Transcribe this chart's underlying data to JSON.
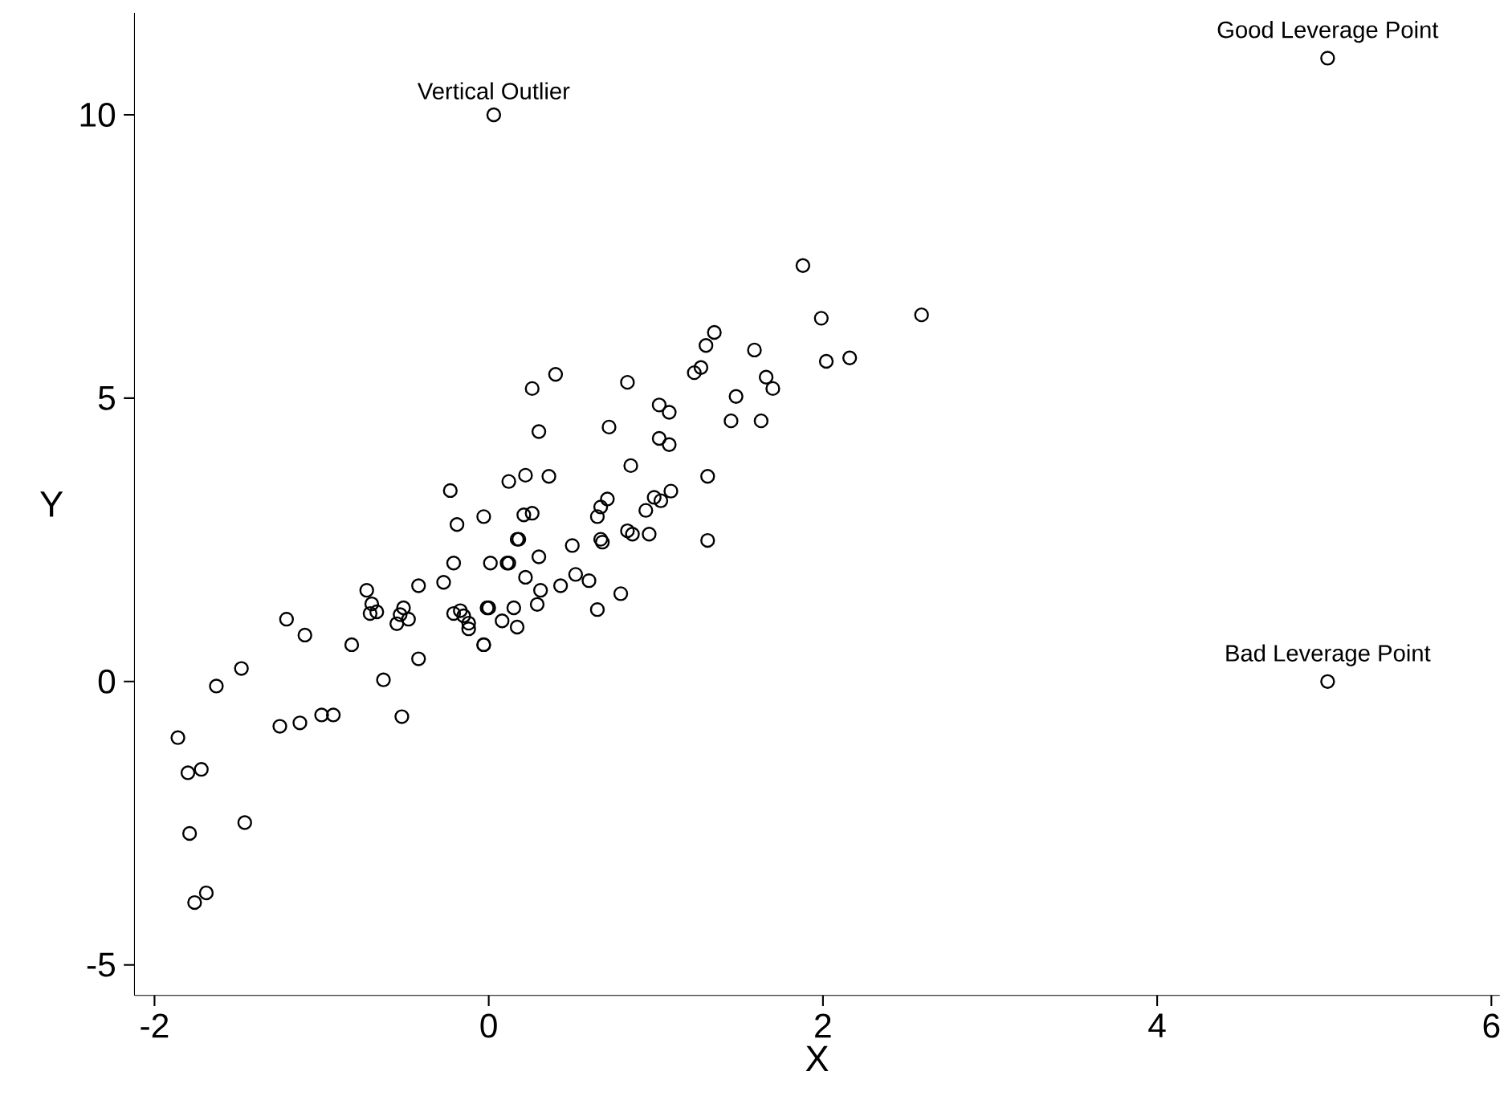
{
  "chart_data": {
    "type": "scatter",
    "xlabel": "X",
    "ylabel": "Y",
    "xlim": [
      -2.12,
      6.05
    ],
    "ylim": [
      -5.54,
      11.8
    ],
    "xticks": [
      -2,
      0,
      2,
      4,
      6
    ],
    "yticks": [
      -5,
      0,
      5,
      10
    ],
    "grid": false,
    "marker": "circle",
    "series": [
      {
        "color": "#000000",
        "x": [
          -1.86,
          -1.8,
          -1.72,
          -1.79,
          -1.46,
          -1.76,
          -1.69,
          -1.63,
          -1.48,
          -1.25,
          -1.13,
          -1.0,
          -0.93,
          -1.21,
          -1.1,
          -0.82,
          -0.63,
          -0.52,
          -0.42,
          -0.73,
          -0.7,
          -0.71,
          -0.67,
          -0.51,
          -0.53,
          -0.48,
          -0.55,
          -0.42,
          -0.27,
          -0.21,
          -0.17,
          -0.12,
          -0.03,
          0.0,
          -0.23,
          -0.19,
          -0.03,
          -0.21,
          0.01,
          0.11,
          0.17,
          0.21,
          1.88,
          1.99,
          2.59,
          2.02,
          2.16,
          1.59,
          1.35,
          1.3,
          1.27,
          1.23,
          1.66,
          1.7,
          1.48,
          1.45,
          1.63,
          0.83,
          1.02,
          1.08,
          1.02,
          1.08,
          0.72,
          0.4,
          0.26,
          0.3,
          0.22,
          0.12,
          0.36,
          0.85,
          1.31,
          1.31,
          1.09,
          1.03,
          0.99,
          0.94,
          0.71,
          0.67,
          0.65,
          0.96,
          0.83,
          0.86,
          0.67,
          0.68,
          0.26,
          0.18,
          0.5,
          0.3,
          0.12,
          0.22,
          0.43,
          0.52,
          0.6,
          0.79,
          0.65,
          0.31,
          0.29,
          0.15,
          -0.01,
          0.08,
          0.17,
          -0.03,
          -0.12,
          -0.15,
          0.03,
          5.02,
          5.02
        ],
        "values": [
          -0.99,
          -1.61,
          -1.55,
          -2.68,
          -2.49,
          -3.9,
          -3.73,
          -0.08,
          0.23,
          -0.79,
          -0.73,
          -0.59,
          -0.59,
          1.1,
          0.82,
          0.65,
          0.03,
          -0.62,
          0.4,
          1.61,
          1.37,
          1.2,
          1.23,
          1.3,
          1.18,
          1.1,
          1.02,
          1.69,
          1.75,
          1.2,
          1.25,
          1.03,
          0.65,
          1.3,
          3.37,
          2.77,
          2.91,
          2.09,
          2.09,
          2.09,
          2.51,
          2.94,
          7.34,
          6.41,
          6.47,
          5.65,
          5.71,
          5.85,
          6.16,
          5.93,
          5.54,
          5.45,
          5.37,
          5.17,
          5.03,
          4.6,
          4.6,
          5.28,
          4.88,
          4.75,
          4.29,
          4.18,
          4.49,
          5.42,
          5.17,
          4.41,
          3.64,
          3.53,
          3.62,
          3.81,
          3.62,
          2.49,
          3.36,
          3.19,
          3.25,
          3.02,
          3.22,
          3.08,
          2.91,
          2.6,
          2.66,
          2.6,
          2.51,
          2.46,
          2.97,
          2.51,
          2.4,
          2.2,
          2.09,
          1.84,
          1.69,
          1.89,
          1.78,
          1.55,
          1.27,
          1.61,
          1.36,
          1.3,
          1.3,
          1.07,
          0.96,
          0.65,
          0.93,
          1.16,
          10.0,
          11.0,
          0.0
        ],
        "value_labels": [
          null,
          null,
          null,
          null,
          null,
          null,
          null,
          null,
          null,
          null,
          null,
          null,
          null,
          null,
          null,
          null,
          null,
          null,
          null,
          null,
          null,
          null,
          null,
          null,
          null,
          null,
          null,
          null,
          null,
          null,
          null,
          null,
          null,
          null,
          null,
          null,
          null,
          null,
          null,
          null,
          null,
          null,
          null,
          null,
          null,
          null,
          null,
          null,
          null,
          null,
          null,
          null,
          null,
          null,
          null,
          null,
          null,
          null,
          null,
          null,
          null,
          null,
          null,
          null,
          null,
          null,
          null,
          null,
          null,
          null,
          null,
          null,
          null,
          null,
          null,
          null,
          null,
          null,
          null,
          null,
          null,
          null,
          null,
          null,
          null,
          null,
          null,
          null,
          null,
          null,
          null,
          null,
          null,
          null,
          null,
          null,
          null,
          null,
          null,
          null,
          null,
          null,
          null,
          null,
          "Vertical Outlier",
          "Good Leverage Point",
          "Bad Leverage Point"
        ]
      }
    ]
  }
}
